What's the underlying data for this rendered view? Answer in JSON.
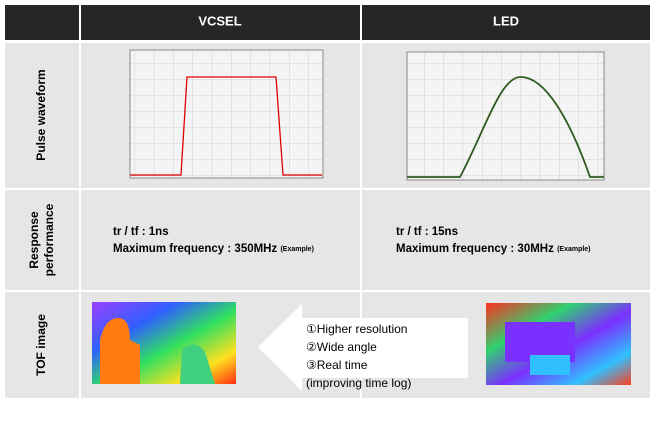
{
  "header": {
    "columns": [
      "VCSEL",
      "LED"
    ]
  },
  "rows": [
    {
      "label": "Pulse waveform"
    },
    {
      "label": [
        "Response",
        "performance"
      ],
      "cells": [
        {
          "lines": [
            "tr / tf : 1ns",
            "Maximum frequency : 350MHz"
          ],
          "note": "(Example)"
        },
        {
          "lines": [
            "tr / tf : 15ns",
            "Maximum frequency : 30MHz"
          ],
          "note": "(Example)"
        }
      ]
    },
    {
      "label": "TOF image"
    }
  ],
  "callout": {
    "lines": [
      "①Higher resolution",
      "②Wide angle",
      "③Real time",
      "(improving time log)"
    ]
  }
}
